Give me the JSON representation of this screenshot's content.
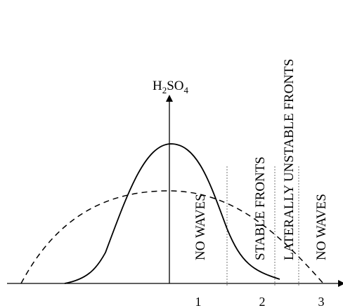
{
  "figure": {
    "y_axis_label": {
      "main1": "H",
      "sub1": "2",
      "main2": "SO",
      "sub2": "4"
    },
    "x_tick_labels": [
      "1",
      "2",
      "3"
    ],
    "region_labels": [
      "NO WAVES",
      "STABLE FRONTS",
      "LATERALLY UNSTABLE FRONTS",
      "NO WAVES"
    ],
    "colors": {
      "curve": "#000000",
      "axis": "#000000",
      "boundary_lines": "#777777"
    }
  }
}
